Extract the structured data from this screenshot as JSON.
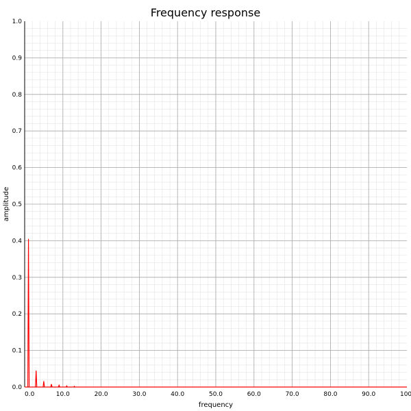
{
  "chart_data": {
    "type": "line",
    "title": "Frequency response",
    "xlabel": "frequency",
    "ylabel": "amplitude",
    "xlim": [
      0,
      100
    ],
    "ylim": [
      0,
      1
    ],
    "grid": true,
    "x_ticks": [
      "0.0",
      "10.0",
      "20.0",
      "30.0",
      "40.0",
      "50.0",
      "60.0",
      "70.0",
      "80.0",
      "90.0",
      "100."
    ],
    "y_ticks": [
      "0.0",
      "0.1",
      "0.2",
      "0.3",
      "0.4",
      "0.5",
      "0.6",
      "0.7",
      "0.8",
      "0.9",
      "1.0"
    ],
    "line_color": "#ff0000",
    "peaks": [
      {
        "x": 1,
        "y": 0.405
      },
      {
        "x": 3,
        "y": 0.045
      },
      {
        "x": 5,
        "y": 0.016
      },
      {
        "x": 7,
        "y": 0.008
      },
      {
        "x": 9,
        "y": 0.005
      },
      {
        "x": 11,
        "y": 0.003
      },
      {
        "x": 13,
        "y": 0.002
      }
    ]
  }
}
